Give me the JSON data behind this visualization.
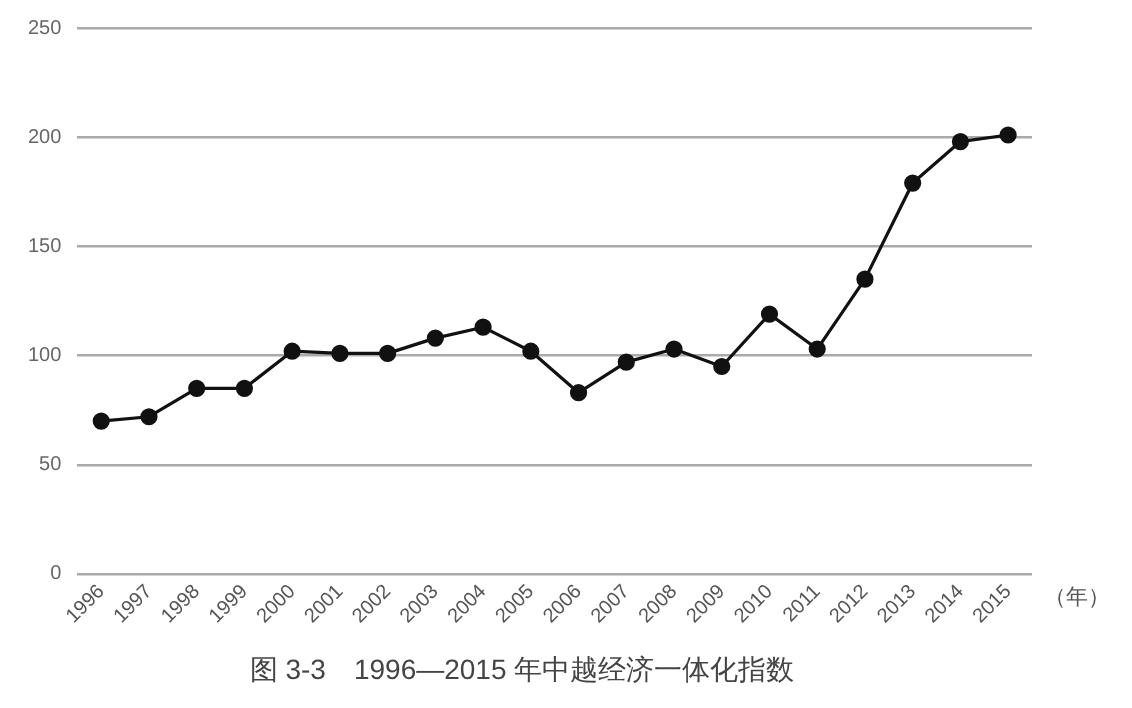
{
  "chart_data": {
    "type": "line",
    "title": "图 3-3　1996—2015 年中越经济一体化指数",
    "xlabel": "（年）",
    "categories": [
      "1996",
      "1997",
      "1998",
      "1999",
      "2000",
      "2001",
      "2002",
      "2003",
      "2004",
      "2005",
      "2006",
      "2007",
      "2008",
      "2009",
      "2010",
      "2011",
      "2012",
      "2013",
      "2014",
      "2015"
    ],
    "series": [
      {
        "color": "#111111",
        "values": [
          70,
          72,
          85,
          85,
          102,
          101,
          101,
          108,
          113,
          102,
          83,
          97,
          103,
          95,
          119,
          103,
          135,
          179,
          198,
          201
        ]
      }
    ],
    "ylim": [
      0,
      250
    ],
    "yticks": [
      0,
      50,
      100,
      150,
      200,
      250
    ],
    "grid": "y",
    "legend": false,
    "marker": "circle",
    "line_style": "solid"
  }
}
